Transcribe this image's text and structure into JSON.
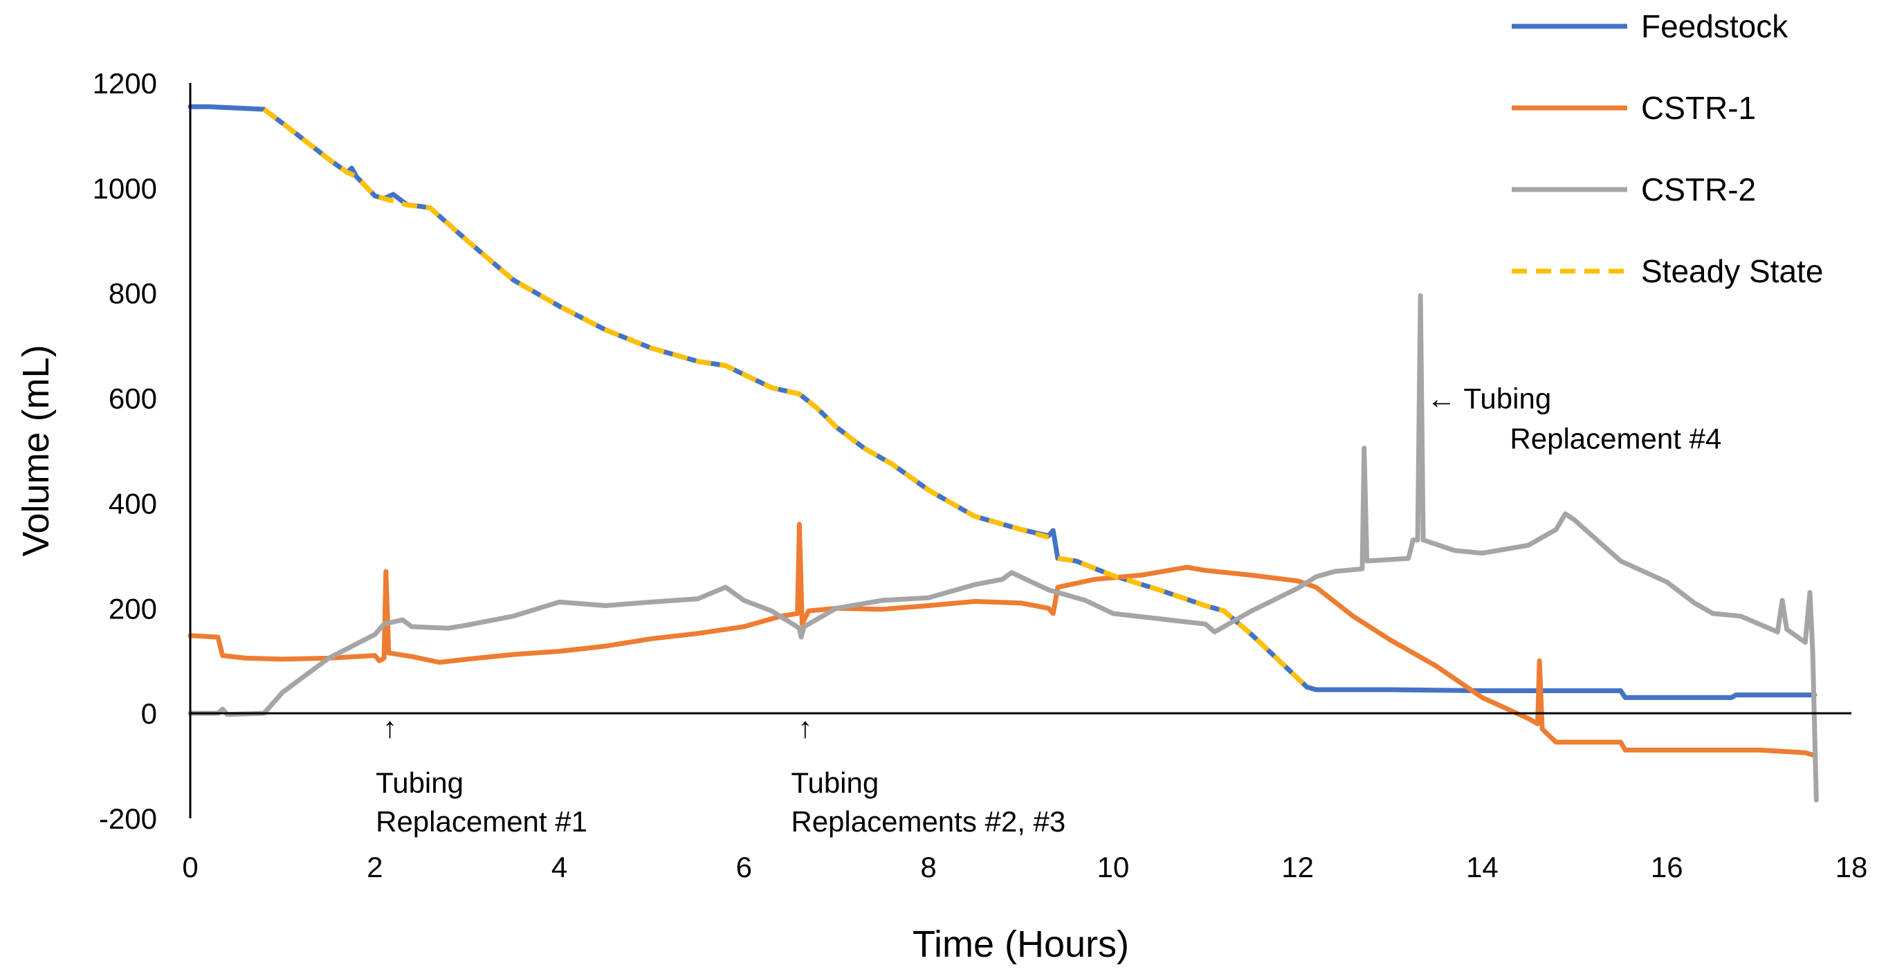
{
  "chart_data": {
    "type": "line",
    "title": "",
    "xlabel": "Time (Hours)",
    "ylabel": "Volume (mL)",
    "xlim": [
      0,
      18
    ],
    "ylim": [
      -200,
      1200
    ],
    "xticks": [
      0,
      2,
      4,
      6,
      8,
      10,
      12,
      14,
      16,
      18
    ],
    "yticks": [
      -200,
      0,
      200,
      400,
      600,
      800,
      1000,
      1200
    ],
    "grid": false,
    "legend_position": "top-right",
    "series": [
      {
        "name": "Feedstock",
        "color": "#4472C4",
        "style": "solid",
        "points": [
          [
            0,
            1155
          ],
          [
            0.2,
            1155
          ],
          [
            0.8,
            1150
          ],
          [
            1.1,
            1110
          ],
          [
            1.5,
            1055
          ],
          [
            1.7,
            1030
          ],
          [
            1.75,
            1038
          ],
          [
            1.8,
            1022
          ],
          [
            2.0,
            985
          ],
          [
            2.1,
            980
          ],
          [
            2.2,
            988
          ],
          [
            2.35,
            968
          ],
          [
            2.5,
            965
          ],
          [
            2.6,
            962
          ],
          [
            3.0,
            900
          ],
          [
            3.5,
            825
          ],
          [
            4.0,
            775
          ],
          [
            4.5,
            730
          ],
          [
            5.0,
            695
          ],
          [
            5.5,
            670
          ],
          [
            5.8,
            662
          ],
          [
            6.0,
            645
          ],
          [
            6.3,
            620
          ],
          [
            6.6,
            608
          ],
          [
            6.8,
            580
          ],
          [
            7.0,
            545
          ],
          [
            7.3,
            505
          ],
          [
            7.6,
            475
          ],
          [
            8.0,
            425
          ],
          [
            8.5,
            375
          ],
          [
            9.0,
            350
          ],
          [
            9.3,
            338
          ],
          [
            9.35,
            348
          ],
          [
            9.4,
            295
          ],
          [
            9.6,
            290
          ],
          [
            10.0,
            262
          ],
          [
            10.5,
            235
          ],
          [
            11.0,
            205
          ],
          [
            11.2,
            195
          ],
          [
            11.5,
            150
          ],
          [
            11.8,
            100
          ],
          [
            12.1,
            50
          ],
          [
            12.2,
            45
          ],
          [
            13.0,
            45
          ],
          [
            14.0,
            43
          ],
          [
            15.0,
            43
          ],
          [
            15.5,
            43
          ],
          [
            15.55,
            30
          ],
          [
            16.0,
            30
          ],
          [
            16.7,
            30
          ],
          [
            16.75,
            35
          ],
          [
            17.6,
            35
          ]
        ]
      },
      {
        "name": "CSTR-1",
        "color": "#ED7D31",
        "style": "solid",
        "points": [
          [
            0,
            148
          ],
          [
            0.3,
            145
          ],
          [
            0.35,
            110
          ],
          [
            0.6,
            105
          ],
          [
            1.0,
            103
          ],
          [
            1.5,
            105
          ],
          [
            2.0,
            110
          ],
          [
            2.05,
            100
          ],
          [
            2.1,
            105
          ],
          [
            2.12,
            270
          ],
          [
            2.15,
            115
          ],
          [
            2.4,
            108
          ],
          [
            2.7,
            97
          ],
          [
            3.0,
            103
          ],
          [
            3.5,
            112
          ],
          [
            4.0,
            118
          ],
          [
            4.5,
            128
          ],
          [
            5.0,
            142
          ],
          [
            5.5,
            152
          ],
          [
            6.0,
            165
          ],
          [
            6.4,
            185
          ],
          [
            6.58,
            190
          ],
          [
            6.6,
            360
          ],
          [
            6.63,
            170
          ],
          [
            6.7,
            195
          ],
          [
            7.0,
            200
          ],
          [
            7.5,
            198
          ],
          [
            8.0,
            205
          ],
          [
            8.5,
            213
          ],
          [
            9.0,
            210
          ],
          [
            9.3,
            200
          ],
          [
            9.35,
            190
          ],
          [
            9.4,
            240
          ],
          [
            9.8,
            255
          ],
          [
            10.3,
            263
          ],
          [
            10.8,
            278
          ],
          [
            11.0,
            272
          ],
          [
            11.5,
            263
          ],
          [
            12.0,
            252
          ],
          [
            12.2,
            240
          ],
          [
            12.6,
            185
          ],
          [
            13.0,
            140
          ],
          [
            13.5,
            90
          ],
          [
            14.0,
            30
          ],
          [
            14.5,
            -10
          ],
          [
            14.6,
            -20
          ],
          [
            14.62,
            100
          ],
          [
            14.65,
            -30
          ],
          [
            14.8,
            -55
          ],
          [
            15.5,
            -55
          ],
          [
            15.55,
            -70
          ],
          [
            16.0,
            -70
          ],
          [
            16.5,
            -70
          ],
          [
            17.0,
            -70
          ],
          [
            17.5,
            -75
          ],
          [
            17.6,
            -80
          ]
        ]
      },
      {
        "name": "CSTR-2",
        "color": "#A5A5A5",
        "style": "solid",
        "points": [
          [
            0,
            0
          ],
          [
            0.3,
            0
          ],
          [
            0.35,
            8
          ],
          [
            0.4,
            -2
          ],
          [
            0.8,
            0
          ],
          [
            1.0,
            40
          ],
          [
            1.5,
            105
          ],
          [
            2.0,
            150
          ],
          [
            2.1,
            170
          ],
          [
            2.3,
            178
          ],
          [
            2.4,
            165
          ],
          [
            2.8,
            162
          ],
          [
            3.0,
            168
          ],
          [
            3.5,
            185
          ],
          [
            4.0,
            212
          ],
          [
            4.5,
            205
          ],
          [
            5.0,
            212
          ],
          [
            5.5,
            218
          ],
          [
            5.8,
            240
          ],
          [
            6.0,
            215
          ],
          [
            6.3,
            195
          ],
          [
            6.6,
            162
          ],
          [
            6.62,
            145
          ],
          [
            6.65,
            165
          ],
          [
            7.0,
            200
          ],
          [
            7.5,
            215
          ],
          [
            8.0,
            220
          ],
          [
            8.5,
            245
          ],
          [
            8.8,
            255
          ],
          [
            8.9,
            268
          ],
          [
            9.3,
            235
          ],
          [
            9.7,
            215
          ],
          [
            10.0,
            190
          ],
          [
            10.5,
            180
          ],
          [
            11.0,
            170
          ],
          [
            11.1,
            155
          ],
          [
            11.5,
            195
          ],
          [
            12.0,
            238
          ],
          [
            12.2,
            260
          ],
          [
            12.4,
            270
          ],
          [
            12.7,
            275
          ],
          [
            12.72,
            505
          ],
          [
            12.75,
            290
          ],
          [
            13.2,
            295
          ],
          [
            13.25,
            330
          ],
          [
            13.3,
            330
          ],
          [
            13.33,
            795
          ],
          [
            13.36,
            330
          ],
          [
            13.7,
            310
          ],
          [
            14.0,
            305
          ],
          [
            14.5,
            320
          ],
          [
            14.8,
            350
          ],
          [
            14.9,
            380
          ],
          [
            15.0,
            368
          ],
          [
            15.5,
            290
          ],
          [
            16.0,
            250
          ],
          [
            16.3,
            210
          ],
          [
            16.5,
            190
          ],
          [
            16.8,
            185
          ],
          [
            17.0,
            170
          ],
          [
            17.2,
            155
          ],
          [
            17.25,
            215
          ],
          [
            17.3,
            160
          ],
          [
            17.5,
            135
          ],
          [
            17.55,
            230
          ],
          [
            17.58,
            120
          ],
          [
            17.62,
            -165
          ]
        ]
      },
      {
        "name": "Steady State",
        "color": "#FFC000",
        "style": "dashed",
        "segments": [
          [
            [
              0.8,
              1150
            ],
            [
              1.1,
              1110
            ],
            [
              1.5,
              1055
            ],
            [
              1.7,
              1030
            ],
            [
              1.8,
              1022
            ],
            [
              2.0,
              985
            ],
            [
              2.1,
              980
            ],
            [
              2.35,
              968
            ],
            [
              2.6,
              962
            ],
            [
              3.0,
              900
            ],
            [
              3.5,
              825
            ],
            [
              4.0,
              775
            ],
            [
              4.5,
              730
            ],
            [
              5.0,
              695
            ],
            [
              5.5,
              670
            ],
            [
              5.8,
              662
            ],
            [
              6.0,
              645
            ],
            [
              6.3,
              620
            ],
            [
              6.6,
              608
            ],
            [
              6.8,
              580
            ],
            [
              7.0,
              545
            ],
            [
              7.3,
              505
            ],
            [
              7.6,
              475
            ],
            [
              8.0,
              425
            ],
            [
              8.5,
              375
            ],
            [
              9.0,
              350
            ],
            [
              9.3,
              335
            ]
          ],
          [
            [
              9.4,
              295
            ],
            [
              9.6,
              290
            ],
            [
              10.0,
              262
            ],
            [
              10.5,
              235
            ],
            [
              11.0,
              205
            ],
            [
              11.2,
              195
            ],
            [
              11.5,
              150
            ],
            [
              11.8,
              100
            ],
            [
              12.1,
              50
            ]
          ]
        ]
      }
    ],
    "annotations": [
      {
        "id": "tr1",
        "x": 2.1,
        "y": 0,
        "lines": [
          "↑",
          "Tubing",
          "Replacement #1"
        ]
      },
      {
        "id": "tr23",
        "x": 6.6,
        "y": 0,
        "lines": [
          "↑",
          "Tubing",
          "Replacements #2, #3"
        ]
      },
      {
        "id": "tr4",
        "x": 13.4,
        "y": 600,
        "lines": [
          "← Tubing",
          "Replacement #4"
        ]
      }
    ]
  }
}
